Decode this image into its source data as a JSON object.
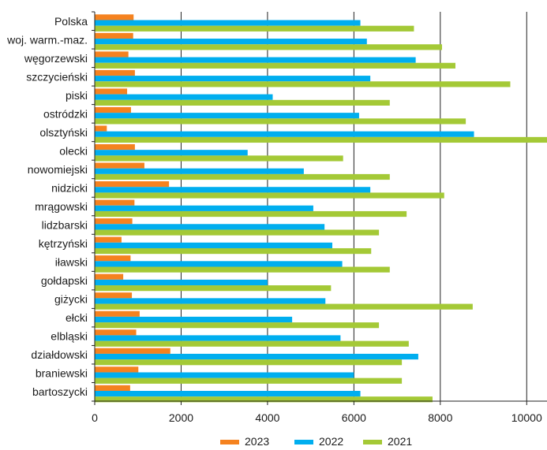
{
  "chart_data": {
    "type": "bar",
    "orientation": "horizontal",
    "categories": [
      "Polska",
      "woj. warm.-maz.",
      "węgorzewski",
      "szczycieński",
      "piski",
      "ostródzki",
      "olsztyński",
      "olecki",
      "nowomiejski",
      "nidzicki",
      "mrągowski",
      "lidzbarski",
      "kętrzyński",
      "iławski",
      "gołdapski",
      "giżycki",
      "ełcki",
      "elbląski",
      "działdowski",
      "braniewski",
      "bartoszycki"
    ],
    "series": [
      {
        "name": "2023",
        "color": "#f5821f",
        "values": [
          900,
          890,
          780,
          930,
          750,
          840,
          280,
          930,
          1150,
          1720,
          920,
          870,
          620,
          830,
          660,
          860,
          1040,
          960,
          1750,
          1010,
          820
        ]
      },
      {
        "name": "2022",
        "color": "#00aeef",
        "values": [
          6150,
          6300,
          7430,
          6380,
          4120,
          6120,
          8780,
          3540,
          4840,
          6380,
          5060,
          5320,
          5500,
          5730,
          4000,
          5340,
          4570,
          5690,
          7490,
          6000,
          6150
        ]
      },
      {
        "name": "2021",
        "color": "#a4c936",
        "values": [
          7390,
          8040,
          8350,
          9620,
          6830,
          8590,
          10470,
          5750,
          6830,
          8090,
          7220,
          6580,
          6400,
          6830,
          5470,
          8750,
          6580,
          7270,
          7110,
          7110,
          7820
        ]
      }
    ],
    "xlim": [
      0,
      10470
    ],
    "xticks": [
      0,
      2000,
      4000,
      6000,
      8000,
      10000
    ],
    "grid": true,
    "legend": {
      "position": "bottom",
      "entries": [
        "2023",
        "2022",
        "2021"
      ]
    }
  }
}
